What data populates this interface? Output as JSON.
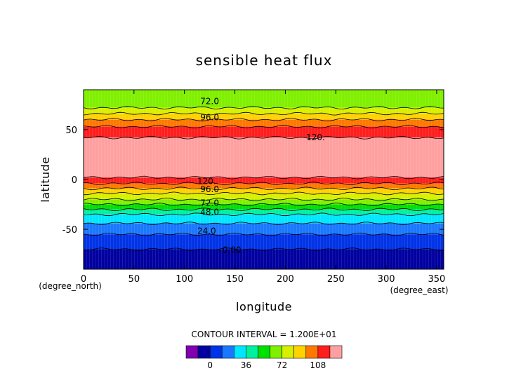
{
  "chart_data": {
    "type": "heatmap",
    "title": "sensible heat flux",
    "xlabel": "longitude",
    "ylabel": "latitude",
    "x_units": "(degree_east)",
    "y_units": "(degree_north)",
    "xlim": [
      0,
      357
    ],
    "ylim": [
      -90,
      90
    ],
    "x_ticks": [
      0,
      50,
      100,
      150,
      200,
      250,
      300,
      350
    ],
    "y_ticks": [
      -50,
      0,
      50
    ],
    "contour_interval_text": "CONTOUR INTERVAL = 1.200E+01",
    "contour_labels": [
      {
        "text": "72.0",
        "lon": 125,
        "lat": 79
      },
      {
        "text": "96.0",
        "lon": 125,
        "lat": 63
      },
      {
        "text": "120.",
        "lon": 230,
        "lat": 43
      },
      {
        "text": "120.",
        "lon": 122,
        "lat": -1
      },
      {
        "text": "96.0",
        "lon": 125,
        "lat": -9
      },
      {
        "text": "72.0",
        "lon": 125,
        "lat": -23
      },
      {
        "text": "48.0",
        "lon": 125,
        "lat": -32
      },
      {
        "text": "24.0",
        "lon": 122,
        "lat": -51
      },
      {
        "text": "0.00",
        "lon": 147,
        "lat": -70
      }
    ],
    "bands": [
      {
        "from": 72,
        "to": 90,
        "level": 72
      },
      {
        "from": 66,
        "to": 72,
        "level": 84
      },
      {
        "from": 60,
        "to": 66,
        "level": 96
      },
      {
        "from": 53,
        "to": 60,
        "level": 108
      },
      {
        "from": 42,
        "to": 53,
        "level": 120
      },
      {
        "from": 2,
        "to": 42,
        "level": 132
      },
      {
        "from": -4,
        "to": 2,
        "level": 120
      },
      {
        "from": -9,
        "to": -4,
        "level": 108
      },
      {
        "from": -14,
        "to": -9,
        "level": 96
      },
      {
        "from": -20,
        "to": -14,
        "level": 84
      },
      {
        "from": -25,
        "to": -20,
        "level": 72
      },
      {
        "from": -30,
        "to": -25,
        "level": 60
      },
      {
        "from": -35,
        "to": -30,
        "level": 48
      },
      {
        "from": -44,
        "to": -35,
        "level": 36
      },
      {
        "from": -55,
        "to": -44,
        "level": 24
      },
      {
        "from": -70,
        "to": -55,
        "level": 12
      },
      {
        "from": -90,
        "to": -70,
        "level": 0
      }
    ],
    "colorbar": {
      "levels": [
        -12,
        0,
        12,
        24,
        36,
        48,
        60,
        72,
        84,
        96,
        108,
        120,
        132
      ],
      "labels": [
        "0",
        "36",
        "72",
        "108"
      ],
      "label_levels": [
        0,
        36,
        72,
        108
      ],
      "colors": {
        "-12": "#8000b0",
        "0": "#0000a0",
        "12": "#0033e6",
        "24": "#1a78ff",
        "36": "#00e6ff",
        "48": "#00f0a0",
        "60": "#00e000",
        "72": "#80f000",
        "84": "#d8f000",
        "96": "#ffd200",
        "108": "#ff7800",
        "120": "#ff1e1e",
        "132": "#ffa0a0"
      }
    }
  }
}
